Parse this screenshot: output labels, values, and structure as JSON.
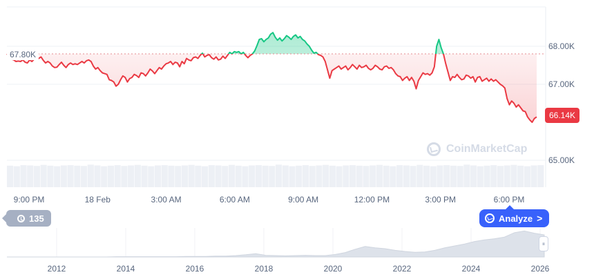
{
  "chart_data": {
    "type": "line",
    "y_axis": {
      "labels": [
        "68.00K",
        "67.00K",
        "65.00K"
      ],
      "values": [
        68000,
        67000,
        65000
      ],
      "position": "right"
    },
    "x_axis": {
      "labels": [
        "9:00 PM",
        "18 Feb",
        "3:00 AM",
        "6:00 AM",
        "9:00 AM",
        "12:00 PM",
        "3:00 PM",
        "6:00 PM"
      ]
    },
    "reference_line": {
      "value": 67800,
      "label": "67.80K"
    },
    "current_price": {
      "value": 66140,
      "label": "66.14K"
    },
    "colors": {
      "up": "#16c784",
      "down": "#ea3943",
      "reference": "#e58a8f"
    },
    "series": [
      {
        "values": [
          67800,
          67720,
          67660,
          67640,
          67600,
          67610,
          67600,
          67640,
          67580,
          67560,
          67640,
          67600,
          67660,
          67690,
          67680,
          67720,
          67630,
          67560,
          67600,
          67560,
          67480,
          67440,
          67450,
          67520,
          67580,
          67500,
          67440,
          67520,
          67560,
          67520,
          67540,
          67520,
          67560,
          67600,
          67560,
          67620,
          67640,
          67600,
          67480,
          67400,
          67440,
          67360,
          67300,
          67280,
          67260,
          67120,
          67100,
          67060,
          66950,
          67000,
          67120,
          67220,
          67180,
          67060,
          67150,
          67180,
          67260,
          67230,
          67180,
          67300,
          67280,
          67220,
          67300,
          67400,
          67350,
          67280,
          67360,
          67440,
          67400,
          67480,
          67540,
          67560,
          67600,
          67520,
          67580,
          67560,
          67460,
          67600,
          67540,
          67680,
          67640,
          67620,
          67700,
          67720,
          67680,
          67760,
          67820,
          67720,
          67760,
          67780,
          67700,
          67660,
          67720,
          67640,
          67660,
          67740,
          67680,
          67760,
          67840,
          67800,
          67860,
          67840,
          67860,
          67800,
          67840,
          67760,
          67700,
          67760,
          67800,
          67880,
          68020,
          68180,
          68200,
          68120,
          68180,
          68220,
          68320,
          68360,
          68240,
          68160,
          68220,
          68140,
          68200,
          68280,
          68240,
          68180,
          68260,
          68300,
          68220,
          68260,
          68180,
          68140,
          68060,
          68000,
          67900,
          67820,
          67840,
          67780,
          67760,
          67720,
          67600,
          67380,
          67160,
          67360,
          67400,
          67440,
          67480,
          67400,
          67440,
          67480,
          67380,
          67440,
          67520,
          67460,
          67400,
          67500,
          67440,
          67460,
          67500,
          67420,
          67380,
          67420,
          67500,
          67460,
          67400,
          67380,
          67460,
          67480,
          67420,
          67440,
          67380,
          67280,
          67220,
          67200,
          67100,
          67160,
          67200,
          67100,
          67180,
          67080,
          66880,
          67100,
          67200,
          67300,
          67260,
          67280,
          67240,
          67300,
          67460,
          68000,
          68180,
          67960,
          67800,
          67540,
          67320,
          67100,
          67200,
          67180,
          67260,
          67180,
          67120,
          67140,
          67240,
          67220,
          67160,
          67200,
          67060,
          67180,
          67200,
          67080,
          67120,
          67160,
          67080,
          67140,
          67080,
          67120,
          67060,
          67000,
          66960,
          66900,
          66620,
          66460,
          66560,
          66500,
          66400,
          66460,
          66380,
          66300,
          66280,
          66140,
          66060,
          66000,
          66100,
          66140
        ]
      }
    ],
    "volume_values": [
      0.82,
      0.8,
      0.84,
      0.83,
      0.81,
      0.85,
      0.82,
      0.8,
      0.83,
      0.84,
      0.82,
      0.81,
      0.86,
      0.83,
      0.8,
      0.82,
      0.84,
      0.81,
      0.83,
      0.85,
      0.82,
      0.8,
      0.83,
      0.84,
      0.82,
      0.81,
      0.83,
      0.85,
      0.82,
      0.8,
      0.84,
      0.83,
      0.81,
      0.85,
      0.82,
      0.8,
      0.83,
      0.84,
      0.82,
      0.81,
      0.86,
      0.83,
      0.8,
      0.82,
      0.84,
      0.81,
      0.83,
      0.85,
      0.82,
      0.8,
      0.83,
      0.84,
      0.82,
      0.81,
      0.83,
      0.85,
      0.82,
      0.8,
      0.84,
      0.83,
      0.81,
      0.85,
      0.82,
      0.8,
      0.83,
      0.84,
      0.82,
      0.81,
      0.86,
      0.83,
      0.8,
      0.82,
      0.84,
      0.81,
      0.83,
      0.85,
      0.82,
      0.8,
      0.83,
      0.84
    ],
    "navigator": {
      "x_labels": [
        "2012",
        "2014",
        "2016",
        "2018",
        "2020",
        "2022",
        "2024",
        "2026"
      ],
      "values": [
        0.0,
        0.0,
        0.0,
        0.0,
        0.0,
        0.0,
        0.0,
        0.0,
        0.0,
        0.0,
        0.0,
        0.01,
        0.01,
        0.01,
        0.01,
        0.01,
        0.01,
        0.01,
        0.02,
        0.02,
        0.02,
        0.03,
        0.03,
        0.05,
        0.08,
        0.12,
        0.06,
        0.05,
        0.04,
        0.05,
        0.06,
        0.05,
        0.05,
        0.09,
        0.16,
        0.28,
        0.38,
        0.33,
        0.3,
        0.24,
        0.2,
        0.17,
        0.18,
        0.24,
        0.33,
        0.4,
        0.47,
        0.56,
        0.62,
        0.66,
        0.72,
        0.88,
        0.94,
        0.86,
        0.8
      ]
    }
  },
  "watermark": {
    "text": "CoinMarketCap",
    "icon": "coinmarketcap-logo"
  },
  "history_badge": {
    "icon": "history-clock-icon",
    "count": "135"
  },
  "analyze_button": {
    "icon": "analyze-chart-icon",
    "label": "Analyze",
    "chevron": ">"
  },
  "navigator_handle": {
    "icon": "drag-grip-icon",
    "glyph": "⏸"
  }
}
